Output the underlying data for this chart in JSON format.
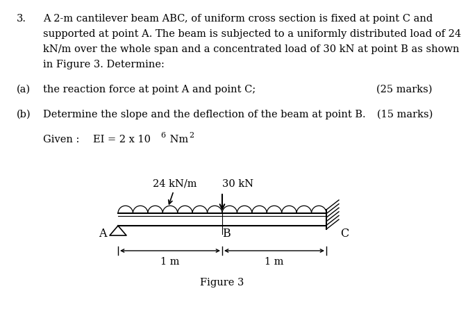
{
  "title_num": "3.",
  "title_lines": [
    "A 2-m cantilever beam ABC, of uniform cross section is fixed at point C and",
    "supported at point A. The beam is subjected to a uniformly distributed load of 24",
    "kN/m over the whole span and a concentrated load of 30 kN at point B as shown",
    "in Figure 3. Determine:"
  ],
  "part_a_label": "(a)",
  "part_a_text": "the reaction force at point A and point C;",
  "part_a_marks": "(25 marks)",
  "part_b_label": "(b)",
  "part_b_text": "Determine the slope and the deflection of the beam at point B.",
  "part_b_marks": "(15 marks)",
  "given_label": "Given :",
  "udl_label": "24 kN/m",
  "point_load_label": "30 kN",
  "label_A": "A",
  "label_B": "B",
  "label_C": "C",
  "dim1": "1 m",
  "dim2": "1 m",
  "figure_caption": "Figure 3",
  "bg_color": "#ffffff",
  "fontsize": 10.5
}
